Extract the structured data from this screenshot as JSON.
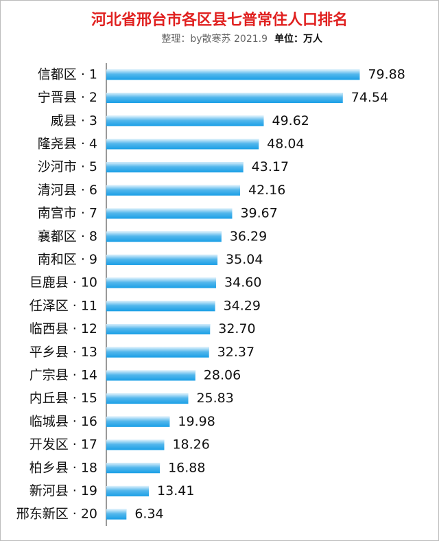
{
  "chart_data": {
    "type": "bar",
    "orientation": "horizontal",
    "title": "河北省邢台市各区县七普常住人口排名",
    "subtitle": "整理：by散寒苏 2021.9",
    "unit_label": "单位：万人",
    "categories": [
      "信都区 · 1",
      "宁晋县 · 2",
      "威县 · 3",
      "隆尧县 · 4",
      "沙河市 · 5",
      "清河县 · 6",
      "南宫市 · 7",
      "襄都区 · 8",
      "南和区 · 9",
      "巨鹿县 · 10",
      "任泽区 · 11",
      "临西县 · 12",
      "平乡县 · 13",
      "广宗县 · 14",
      "内丘县 · 15",
      "临城县 · 16",
      "开发区 · 17",
      "柏乡县 · 18",
      "新河县 · 19",
      "邢东新区 · 20"
    ],
    "values": [
      79.88,
      74.54,
      49.62,
      48.04,
      43.17,
      42.16,
      39.67,
      36.29,
      35.04,
      34.6,
      34.29,
      32.7,
      32.37,
      28.06,
      25.83,
      19.98,
      18.26,
      16.88,
      13.41,
      6.34
    ],
    "value_labels": [
      "79.88",
      "74.54",
      "49.62",
      "48.04",
      "43.17",
      "42.16",
      "39.67",
      "36.29",
      "35.04",
      "34.60",
      "34.29",
      "32.70",
      "32.37",
      "28.06",
      "25.83",
      "19.98",
      "18.26",
      "16.88",
      "13.41",
      "6.34"
    ],
    "color": "#1a9fe6",
    "xlim": [
      0,
      80
    ]
  }
}
